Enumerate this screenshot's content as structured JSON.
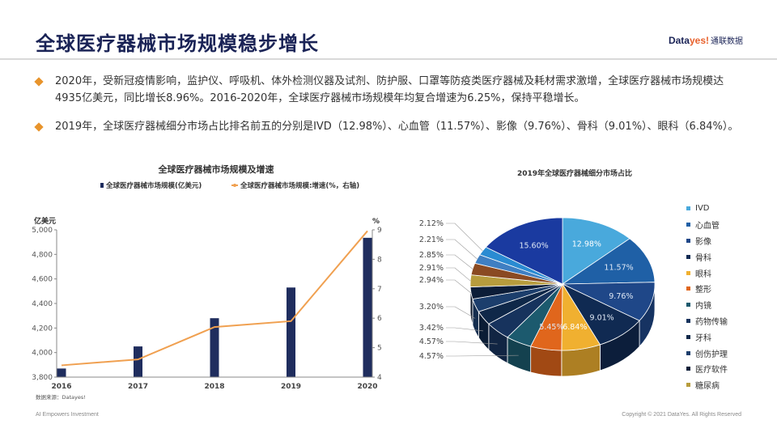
{
  "title": "全球医疗器械市场规模稳步增长",
  "brand": {
    "part1": "Data",
    "part2": "yes!",
    "part3": "通联数据"
  },
  "bullets": [
    "2020年，受新冠疫情影响，监护仪、呼吸机、体外检测仪器及试剂、防护服、口罩等防疫类医疗器械及耗材需求激增，全球医疗器械市场规模达4935亿美元，同比增长8.96%。2016-2020年，全球医疗器械市场规模年均复合增速为6.25%，保持平稳增长。",
    "2019年，全球医疗器械细分市场占比排名前五的分别是IVD（12.98%）、心血管（11.57%）、影像（9.76%）、骨科（9.01%）、眼科（6.84%）。"
  ],
  "footer": {
    "left": "AI Empowers Investment",
    "right": "Copyright © 2021 DataYes. All Rights Reserved"
  },
  "colors": {
    "bar": "#1f2d5e",
    "line": "#f0a050",
    "title": "#1a2356",
    "accent": "#e8942c"
  },
  "chart_data": [
    {
      "type": "bar",
      "title": "全球医疗器械市场规模及增速",
      "legend": [
        "全球医疗器械市场规模(亿美元)",
        "全球医疗器械市场规模:增速(%，右轴)"
      ],
      "legend_position": "top",
      "ylabel": "亿美元",
      "y2label": "%",
      "source": "数据来源：Datayes!",
      "categories": [
        "2016",
        "2017",
        "2018",
        "2019",
        "2020"
      ],
      "ylim": [
        3800,
        5000
      ],
      "yticks": [
        "3,800",
        "4,000",
        "4,200",
        "4,400",
        "4,600",
        "4,800",
        "5,000"
      ],
      "y2lim": [
        4,
        9
      ],
      "y2ticks": [
        "4",
        "5",
        "6",
        "7",
        "8",
        "9"
      ],
      "series": [
        {
          "name": "全球医疗器械市场规模(亿美元)",
          "type": "bar",
          "axis": "left",
          "values": [
            3870,
            4050,
            4280,
            4530,
            4935
          ]
        },
        {
          "name": "全球医疗器械市场规模:增速(%，右轴)",
          "type": "line",
          "axis": "right",
          "values": [
            4.4,
            4.6,
            5.7,
            5.9,
            8.96
          ]
        }
      ],
      "grid": false
    },
    {
      "type": "pie",
      "title": "2019年全球医疗器械细分市场占比",
      "legend_position": "right",
      "slices": [
        {
          "label": "IVD",
          "value": 12.98,
          "display": "12.98%",
          "color": "#49a9dc"
        },
        {
          "label": "心血管",
          "value": 11.57,
          "display": "11.57%",
          "color": "#1f60a6"
        },
        {
          "label": "影像",
          "value": 9.76,
          "display": "9.76%",
          "color": "#1f4788"
        },
        {
          "label": "骨科",
          "value": 9.01,
          "display": "9.01%",
          "color": "#102a52"
        },
        {
          "label": "眼科",
          "value": 6.84,
          "display": "6.84%",
          "color": "#f0b030"
        },
        {
          "label": "整形",
          "value": 5.45,
          "display": "5.45%",
          "color": "#e0661c"
        },
        {
          "label": "内镜",
          "value": 4.57,
          "display": "4.57%",
          "color": "#1c5a6e"
        },
        {
          "label": "药物传输",
          "value": 4.57,
          "display": "4.57%",
          "color": "#17335d"
        },
        {
          "label": "牙科",
          "value": 3.42,
          "display": "3.42%",
          "color": "#0f2849"
        },
        {
          "label": "创伤护理",
          "value": 3.2,
          "display": "3.20%",
          "color": "#1c3e6c"
        },
        {
          "label": "医疗软件",
          "value": 2.94,
          "display": "2.94%",
          "color": "#0c1d38"
        },
        {
          "label": "糖尿病",
          "value": 2.91,
          "display": "2.91%",
          "color": "#b79c3d"
        },
        {
          "label": "",
          "value": 2.85,
          "display": "2.85%",
          "color": "#8a4a22"
        },
        {
          "label": "",
          "value": 2.21,
          "display": "2.21%",
          "color": "#3f7fc2"
        },
        {
          "label": "",
          "value": 2.12,
          "display": "2.12%",
          "color": "#2a8bd2"
        },
        {
          "label": "",
          "value": 15.6,
          "display": "15.60%",
          "color": "#1a3aa0"
        }
      ]
    }
  ]
}
